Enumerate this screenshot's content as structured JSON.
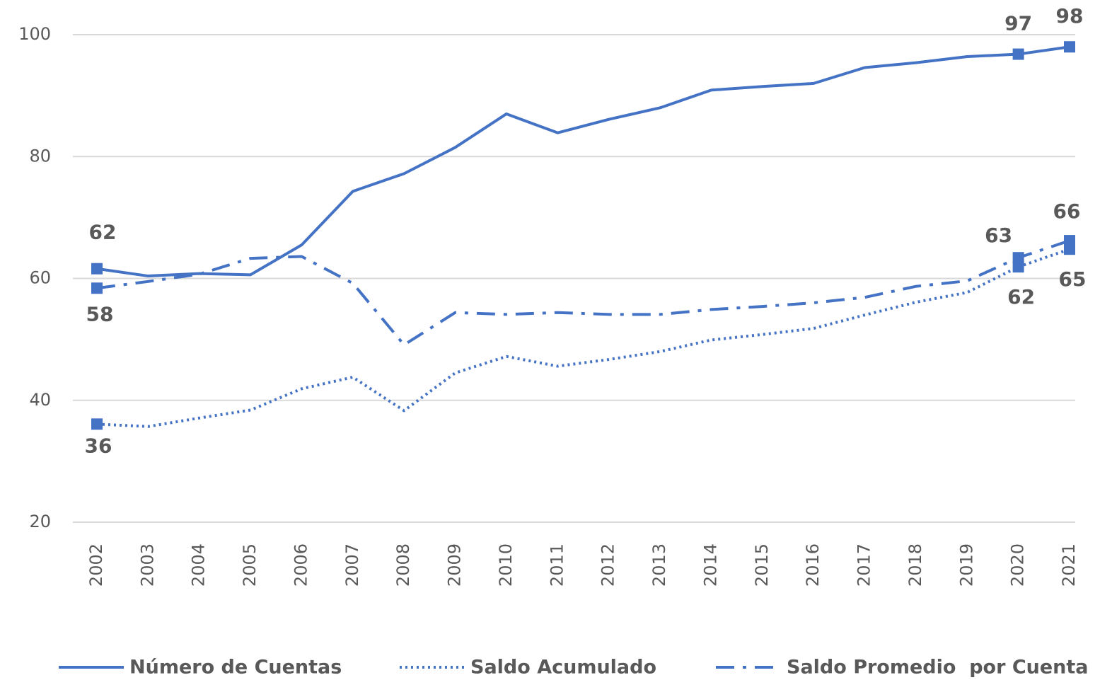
{
  "chart_data": {
    "type": "line",
    "categories": [
      "2002",
      "2003",
      "2004",
      "2005",
      "2006",
      "2007",
      "2008",
      "2009",
      "2010",
      "2011",
      "2012",
      "2013",
      "2014",
      "2015",
      "2016",
      "2017",
      "2018",
      "2019",
      "2020",
      "2021"
    ],
    "series": [
      {
        "name": "Número de Cuentas",
        "color": "#4472c4",
        "values": [
          61.6,
          60.4,
          60.8,
          60.6,
          65.5,
          74.3,
          77.2,
          81.5,
          87,
          83.9,
          86.1,
          88,
          90.9,
          91.5,
          92,
          94.6,
          95.4,
          96.4,
          96.8,
          98
        ],
        "value_labels": [
          "62",
          null,
          null,
          null,
          null,
          null,
          null,
          null,
          null,
          null,
          null,
          null,
          null,
          null,
          null,
          null,
          null,
          null,
          "97",
          "98"
        ]
      },
      {
        "name": "Saldo Acumulado",
        "color": "#4472c4",
        "values": [
          36.1,
          35.7,
          37.1,
          38.4,
          41.9,
          43.8,
          38.3,
          44.5,
          47.2,
          45.6,
          46.7,
          48,
          49.9,
          50.8,
          51.8,
          54,
          56.1,
          57.7,
          61.9,
          64.8
        ],
        "value_labels": [
          "36",
          null,
          null,
          null,
          null,
          null,
          null,
          null,
          null,
          null,
          null,
          null,
          null,
          null,
          null,
          null,
          null,
          null,
          "62",
          "65"
        ]
      },
      {
        "name": "Saldo Promedio  por Cuenta",
        "color": "#4472c4",
        "values": [
          58.4,
          59.5,
          60.7,
          63.3,
          63.6,
          59.2,
          49.1,
          54.4,
          54.1,
          54.4,
          54.1,
          54.1,
          54.9,
          55.4,
          56,
          56.9,
          58.7,
          59.6,
          63.4,
          66.2
        ],
        "value_labels": [
          "58",
          null,
          null,
          null,
          null,
          null,
          null,
          null,
          null,
          null,
          null,
          null,
          null,
          null,
          null,
          null,
          null,
          null,
          "63",
          "66"
        ]
      }
    ],
    "ylim": [
      20,
      100
    ],
    "yticks": [
      20,
      40,
      60,
      80,
      100
    ],
    "grid": true,
    "legend": "bottom"
  }
}
